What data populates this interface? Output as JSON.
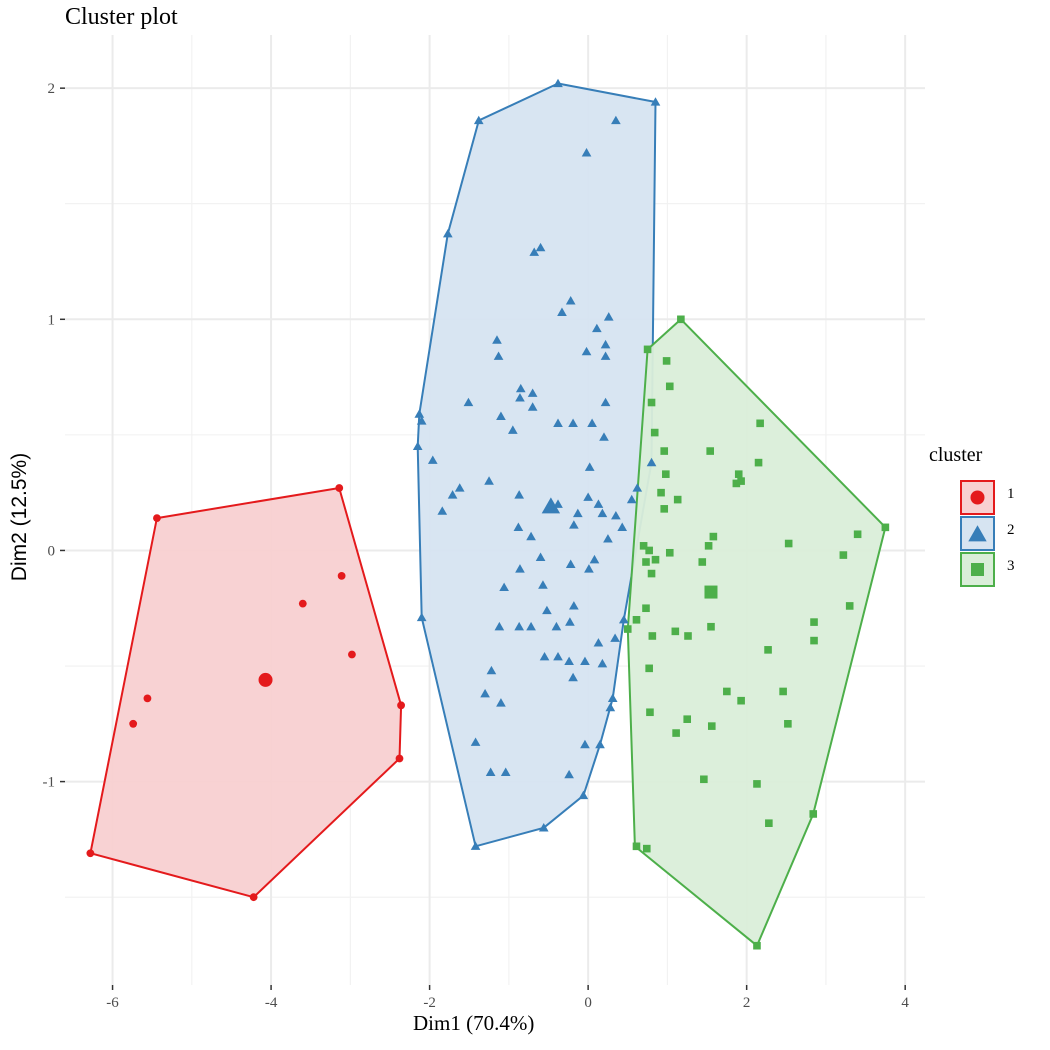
{
  "chart_data": {
    "type": "scatter",
    "title": "Cluster plot",
    "xlabel": "Dim1 (70.4%)",
    "ylabel": "Dim2 (12.5%)",
    "xlim": [
      -6.6,
      4.25
    ],
    "ylim": [
      -1.88,
      2.23
    ],
    "x_ticks": [
      -6,
      -4,
      -2,
      0,
      2,
      4
    ],
    "x_tick_labels": [
      "-6",
      "-4",
      "-2",
      "0",
      "2",
      "4"
    ],
    "y_ticks": [
      -1,
      0,
      1,
      2
    ],
    "y_tick_labels": [
      "-1",
      "0",
      "1",
      "2"
    ],
    "grid": true,
    "legend": {
      "title": "cluster",
      "position": "right",
      "entries": [
        {
          "label": "1",
          "shape": "circle",
          "color": "#e41a1c"
        },
        {
          "label": "2",
          "shape": "triangle",
          "color": "#377eb8"
        },
        {
          "label": "3",
          "shape": "square",
          "color": "#4daf4a"
        }
      ]
    },
    "series": [
      {
        "name": "1",
        "shape": "circle",
        "color": "#e41a1c",
        "fill": "#f8d0d1",
        "centroid": [
          -4.07,
          -0.56
        ],
        "hull": [
          [
            -5.44,
            0.14
          ],
          [
            -3.14,
            0.27
          ],
          [
            -2.36,
            -0.67
          ],
          [
            -2.38,
            -0.9
          ],
          [
            -4.22,
            -1.5
          ],
          [
            -6.28,
            -1.31
          ]
        ],
        "points": [
          [
            -5.44,
            0.14
          ],
          [
            -3.14,
            0.27
          ],
          [
            -3.11,
            -0.11
          ],
          [
            -3.6,
            -0.23
          ],
          [
            -2.98,
            -0.45
          ],
          [
            -2.36,
            -0.67
          ],
          [
            -2.38,
            -0.9
          ],
          [
            -5.56,
            -0.64
          ],
          [
            -5.74,
            -0.75
          ],
          [
            -4.22,
            -1.5
          ],
          [
            -6.28,
            -1.31
          ]
        ]
      },
      {
        "name": "2",
        "shape": "triangle",
        "color": "#377eb8",
        "fill": "#d6e4f1",
        "centroid": [
          -0.47,
          0.19
        ],
        "hull": [
          [
            -0.38,
            2.02
          ],
          [
            0.85,
            1.94
          ],
          [
            0.8,
            0.38
          ],
          [
            0.45,
            -0.3
          ],
          [
            0.31,
            -0.64
          ],
          [
            0.15,
            -0.84
          ],
          [
            -0.06,
            -1.06
          ],
          [
            -0.56,
            -1.2
          ],
          [
            -1.42,
            -1.28
          ],
          [
            -2.1,
            -0.29
          ],
          [
            -2.15,
            0.45
          ],
          [
            -2.13,
            0.59
          ],
          [
            -1.77,
            1.37
          ],
          [
            -1.38,
            1.86
          ]
        ],
        "points": [
          [
            -0.38,
            2.02
          ],
          [
            0.85,
            1.94
          ],
          [
            -1.38,
            1.86
          ],
          [
            0.35,
            1.86
          ],
          [
            -0.02,
            1.72
          ],
          [
            -1.77,
            1.37
          ],
          [
            -0.6,
            1.31
          ],
          [
            -0.68,
            1.29
          ],
          [
            -0.22,
            1.08
          ],
          [
            -0.33,
            1.03
          ],
          [
            0.26,
            1.01
          ],
          [
            0.11,
            0.96
          ],
          [
            0.22,
            0.89
          ],
          [
            -1.15,
            0.91
          ],
          [
            -0.02,
            0.86
          ],
          [
            0.22,
            0.84
          ],
          [
            -1.13,
            0.84
          ],
          [
            -0.85,
            0.7
          ],
          [
            -0.7,
            0.68
          ],
          [
            -0.86,
            0.66
          ],
          [
            -1.51,
            0.64
          ],
          [
            0.22,
            0.64
          ],
          [
            -0.7,
            0.62
          ],
          [
            -2.13,
            0.59
          ],
          [
            -1.1,
            0.58
          ],
          [
            -2.1,
            0.56
          ],
          [
            -0.38,
            0.55
          ],
          [
            -0.19,
            0.55
          ],
          [
            0.05,
            0.55
          ],
          [
            -0.95,
            0.52
          ],
          [
            0.2,
            0.49
          ],
          [
            -2.15,
            0.45
          ],
          [
            0.8,
            0.38
          ],
          [
            -1.96,
            0.39
          ],
          [
            0.02,
            0.36
          ],
          [
            -1.25,
            0.3
          ],
          [
            -1.62,
            0.27
          ],
          [
            -1.71,
            0.24
          ],
          [
            0.62,
            0.27
          ],
          [
            -0.87,
            0.24
          ],
          [
            0.55,
            0.22
          ],
          [
            0.0,
            0.23
          ],
          [
            -0.38,
            0.2
          ],
          [
            0.13,
            0.2
          ],
          [
            -0.13,
            0.16
          ],
          [
            -1.84,
            0.17
          ],
          [
            -0.88,
            0.1
          ],
          [
            0.35,
            0.15
          ],
          [
            0.18,
            0.16
          ],
          [
            -0.18,
            0.11
          ],
          [
            0.43,
            0.1
          ],
          [
            -0.72,
            0.06
          ],
          [
            0.25,
            0.05
          ],
          [
            -0.6,
            -0.03
          ],
          [
            -0.86,
            -0.08
          ],
          [
            -0.22,
            -0.06
          ],
          [
            0.08,
            -0.04
          ],
          [
            0.01,
            -0.08
          ],
          [
            -0.57,
            -0.15
          ],
          [
            -1.06,
            -0.16
          ],
          [
            -0.52,
            -0.26
          ],
          [
            -0.18,
            -0.24
          ],
          [
            -2.1,
            -0.29
          ],
          [
            -0.72,
            -0.33
          ],
          [
            -0.4,
            -0.33
          ],
          [
            -1.12,
            -0.33
          ],
          [
            -0.87,
            -0.33
          ],
          [
            -0.23,
            -0.31
          ],
          [
            0.13,
            -0.4
          ],
          [
            0.45,
            -0.3
          ],
          [
            0.34,
            -0.38
          ],
          [
            -0.38,
            -0.46
          ],
          [
            -0.55,
            -0.46
          ],
          [
            -0.24,
            -0.48
          ],
          [
            0.18,
            -0.49
          ],
          [
            -0.04,
            -0.48
          ],
          [
            -1.22,
            -0.52
          ],
          [
            -0.19,
            -0.55
          ],
          [
            -1.3,
            -0.62
          ],
          [
            -1.1,
            -0.66
          ],
          [
            0.31,
            -0.64
          ],
          [
            -1.42,
            -0.83
          ],
          [
            0.15,
            -0.84
          ],
          [
            0.28,
            -0.68
          ],
          [
            -0.04,
            -0.84
          ],
          [
            -1.23,
            -0.96
          ],
          [
            -1.04,
            -0.96
          ],
          [
            -0.24,
            -0.97
          ],
          [
            -0.06,
            -1.06
          ],
          [
            -0.56,
            -1.2
          ],
          [
            -1.42,
            -1.28
          ]
        ]
      },
      {
        "name": "3",
        "shape": "square",
        "color": "#4daf4a",
        "fill": "#daeed9",
        "centroid": [
          1.55,
          -0.18
        ],
        "hull": [
          [
            1.17,
            1.0
          ],
          [
            3.75,
            0.1
          ],
          [
            2.84,
            -1.14
          ],
          [
            2.13,
            -1.71
          ],
          [
            0.59,
            -1.28
          ],
          [
            0.5,
            -0.34
          ],
          [
            0.75,
            0.87
          ]
        ],
        "points": [
          [
            1.17,
            1.0
          ],
          [
            0.75,
            0.87
          ],
          [
            0.99,
            0.82
          ],
          [
            1.03,
            0.71
          ],
          [
            0.8,
            0.64
          ],
          [
            2.17,
            0.55
          ],
          [
            0.84,
            0.51
          ],
          [
            0.96,
            0.43
          ],
          [
            1.54,
            0.43
          ],
          [
            2.15,
            0.38
          ],
          [
            0.98,
            0.33
          ],
          [
            1.9,
            0.33
          ],
          [
            1.93,
            0.3
          ],
          [
            1.87,
            0.29
          ],
          [
            0.92,
            0.25
          ],
          [
            1.13,
            0.22
          ],
          [
            0.96,
            0.18
          ],
          [
            3.75,
            0.1
          ],
          [
            3.4,
            0.07
          ],
          [
            1.58,
            0.06
          ],
          [
            2.53,
            0.03
          ],
          [
            0.7,
            0.02
          ],
          [
            0.77,
            0.0
          ],
          [
            1.52,
            0.02
          ],
          [
            1.03,
            -0.01
          ],
          [
            1.44,
            -0.05
          ],
          [
            3.22,
            -0.02
          ],
          [
            0.73,
            -0.05
          ],
          [
            0.8,
            -0.1
          ],
          [
            0.85,
            -0.04
          ],
          [
            1.55,
            -0.18
          ],
          [
            0.73,
            -0.25
          ],
          [
            3.3,
            -0.24
          ],
          [
            0.61,
            -0.3
          ],
          [
            2.85,
            -0.31
          ],
          [
            0.5,
            -0.34
          ],
          [
            0.81,
            -0.37
          ],
          [
            1.1,
            -0.35
          ],
          [
            1.26,
            -0.37
          ],
          [
            1.55,
            -0.33
          ],
          [
            2.85,
            -0.39
          ],
          [
            2.27,
            -0.43
          ],
          [
            0.77,
            -0.51
          ],
          [
            1.75,
            -0.61
          ],
          [
            2.46,
            -0.61
          ],
          [
            1.93,
            -0.65
          ],
          [
            0.78,
            -0.7
          ],
          [
            1.25,
            -0.73
          ],
          [
            1.11,
            -0.79
          ],
          [
            1.56,
            -0.76
          ],
          [
            2.52,
            -0.75
          ],
          [
            1.46,
            -0.99
          ],
          [
            2.13,
            -1.01
          ],
          [
            2.84,
            -1.14
          ],
          [
            2.28,
            -1.18
          ],
          [
            0.61,
            -1.28
          ],
          [
            0.74,
            -1.29
          ],
          [
            2.13,
            -1.71
          ]
        ]
      }
    ]
  }
}
